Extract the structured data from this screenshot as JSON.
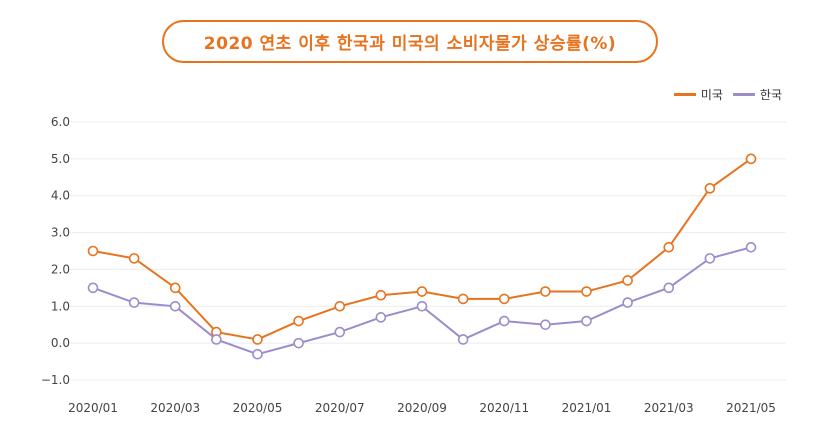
{
  "chart_data": {
    "type": "line",
    "title": "2020 연초 이후 한국과 미국의 소비자물가 상승률(%)",
    "xlabel": "",
    "ylabel": "",
    "ylim": [
      -1.0,
      6.0
    ],
    "yticks": [
      "6.0",
      "5.0",
      "4.0",
      "3.0",
      "2.0",
      "1.0",
      "0.0",
      "−1.0"
    ],
    "x": [
      "2020/01",
      "2020/02",
      "2020/03",
      "2020/04",
      "2020/05",
      "2020/06",
      "2020/07",
      "2020/08",
      "2020/09",
      "2020/10",
      "2020/11",
      "2020/12",
      "2021/01",
      "2021/02",
      "2021/03",
      "2021/04",
      "2021/05"
    ],
    "xticks": [
      "2020/01",
      "2020/03",
      "2020/05",
      "2020/07",
      "2020/09",
      "2020/11",
      "2021/01",
      "2021/03",
      "2021/05"
    ],
    "series": [
      {
        "name": "미국",
        "color": "#e8731e",
        "values": [
          2.5,
          2.3,
          1.5,
          0.3,
          0.1,
          0.6,
          1.0,
          1.3,
          1.4,
          1.2,
          1.2,
          1.4,
          1.4,
          1.7,
          2.6,
          4.2,
          5.0
        ]
      },
      {
        "name": "한국",
        "color": "#9d8ccb",
        "values": [
          1.5,
          1.1,
          1.0,
          0.1,
          -0.3,
          0.0,
          0.3,
          0.7,
          1.0,
          0.1,
          0.6,
          0.5,
          0.6,
          1.1,
          1.5,
          2.3,
          2.6
        ]
      }
    ],
    "legend_position": "top-right",
    "grid": true
  }
}
